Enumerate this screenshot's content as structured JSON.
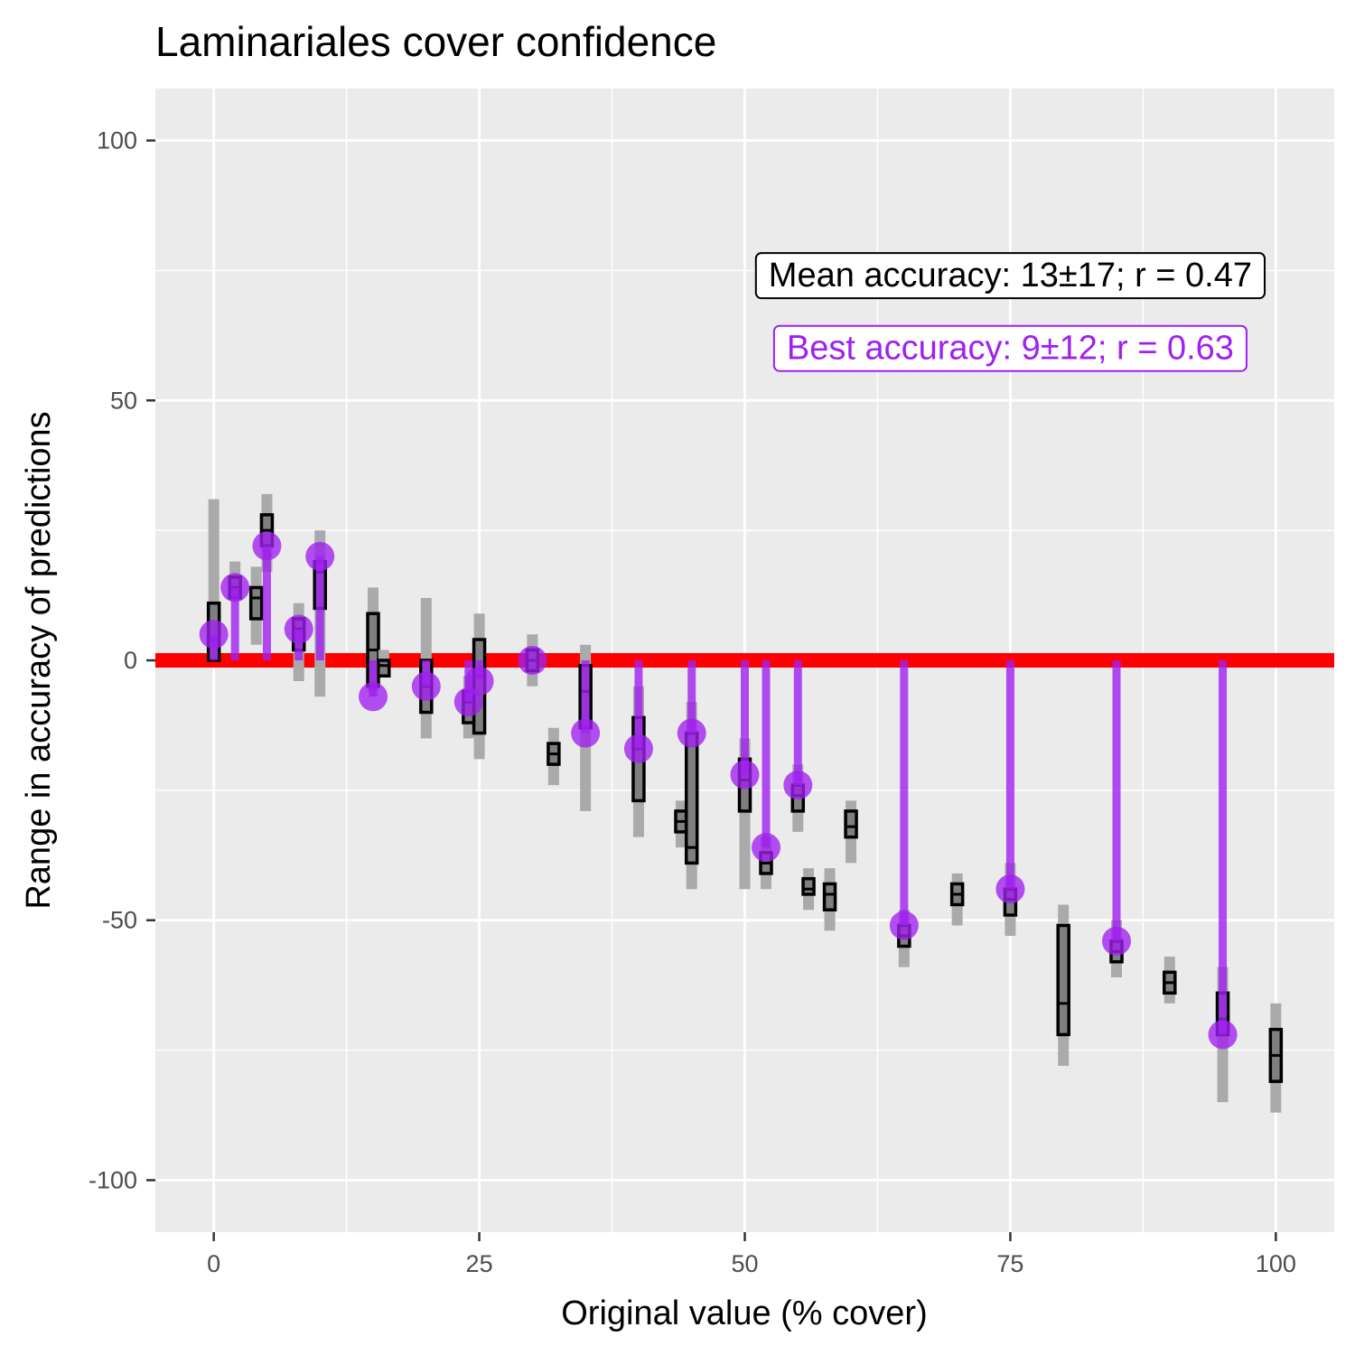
{
  "chart_data": {
    "type": "boxplot-with-points",
    "title": "Laminariales cover confidence",
    "xlabel": "Original value (% cover)",
    "ylabel": "Range in accuracy of predictions",
    "xlim": [
      -5.5,
      105.5
    ],
    "ylim": [
      -110,
      110
    ],
    "x_ticks": [
      0,
      25,
      50,
      75,
      100
    ],
    "y_ticks": [
      100,
      50,
      0,
      -50,
      -100
    ],
    "x_tick_labels": [
      "0",
      "25",
      "50",
      "75",
      "100"
    ],
    "y_tick_labels": [
      "100",
      "50",
      "0",
      "-50",
      "-100"
    ],
    "reference_line": {
      "y": 0,
      "color": "#ff0000"
    },
    "colors": {
      "panel": "#ebebeb",
      "grid": "#ffffff",
      "whisker": "#aaaaaa",
      "box_fill": "#7f7f7f",
      "box_stroke": "#000000",
      "best": "#a020f0",
      "zero_line": "#ff0000"
    },
    "annotations": [
      {
        "text": "Mean accuracy: 13±17; r = 0.47",
        "x": 75,
        "y": 74,
        "color": "#000000"
      },
      {
        "text": "Best accuracy: 9±12; r = 0.63",
        "x": 75,
        "y": 60,
        "color": "#a020f0"
      }
    ],
    "boxes": [
      {
        "x": 0,
        "lo": 0,
        "q1": 0,
        "med": 4,
        "q3": 11,
        "hi": 31
      },
      {
        "x": 2,
        "lo": 12,
        "q1": 12,
        "med": 14,
        "q3": 16,
        "hi": 19
      },
      {
        "x": 4,
        "lo": 3,
        "q1": 8,
        "med": 12,
        "q3": 14,
        "hi": 18
      },
      {
        "x": 5,
        "lo": 17,
        "q1": 22,
        "med": 25,
        "q3": 28,
        "hi": 32
      },
      {
        "x": 8,
        "lo": -4,
        "q1": 2,
        "med": 6,
        "q3": 8,
        "hi": 11
      },
      {
        "x": 10,
        "lo": -7,
        "q1": 10,
        "med": 17,
        "q3": 19,
        "hi": 25
      },
      {
        "x": 15,
        "lo": -6,
        "q1": -5,
        "med": 2,
        "q3": 9,
        "hi": 14
      },
      {
        "x": 16,
        "lo": -3,
        "q1": -3,
        "med": -1,
        "q3": 0,
        "hi": 2
      },
      {
        "x": 20,
        "lo": -15,
        "q1": -10,
        "med": -5,
        "q3": 0,
        "hi": 12
      },
      {
        "x": 24,
        "lo": -15,
        "q1": -12,
        "med": -8,
        "q3": -6,
        "hi": -3
      },
      {
        "x": 25,
        "lo": -19,
        "q1": -14,
        "med": -3,
        "q3": 4,
        "hi": 9
      },
      {
        "x": 30,
        "lo": -5,
        "q1": -2,
        "med": 0,
        "q3": 2,
        "hi": 5
      },
      {
        "x": 32,
        "lo": -24,
        "q1": -20,
        "med": -18,
        "q3": -16,
        "hi": -13
      },
      {
        "x": 35,
        "lo": -29,
        "q1": -13,
        "med": -6,
        "q3": -1,
        "hi": 3
      },
      {
        "x": 40,
        "lo": -34,
        "q1": -27,
        "med": -17,
        "q3": -11,
        "hi": -5
      },
      {
        "x": 44,
        "lo": -36,
        "q1": -33,
        "med": -31,
        "q3": -29,
        "hi": -27
      },
      {
        "x": 45,
        "lo": -44,
        "q1": -39,
        "med": -36,
        "q3": -14,
        "hi": -8
      },
      {
        "x": 50,
        "lo": -44,
        "q1": -29,
        "med": -23,
        "q3": -19,
        "hi": -15
      },
      {
        "x": 52,
        "lo": -44,
        "q1": -41,
        "med": -39,
        "q3": -37,
        "hi": -34
      },
      {
        "x": 55,
        "lo": -33,
        "q1": -29,
        "med": -26,
        "q3": -24,
        "hi": -20
      },
      {
        "x": 56,
        "lo": -48,
        "q1": -45,
        "med": -44,
        "q3": -42,
        "hi": -40
      },
      {
        "x": 58,
        "lo": -52,
        "q1": -48,
        "med": -45,
        "q3": -43,
        "hi": -40
      },
      {
        "x": 60,
        "lo": -39,
        "q1": -34,
        "med": -32,
        "q3": -29,
        "hi": -27
      },
      {
        "x": 65,
        "lo": -59,
        "q1": -55,
        "med": -53,
        "q3": -51,
        "hi": -48
      },
      {
        "x": 70,
        "lo": -51,
        "q1": -47,
        "med": -45,
        "q3": -43,
        "hi": -41
      },
      {
        "x": 75,
        "lo": -53,
        "q1": -49,
        "med": -46,
        "q3": -44,
        "hi": -39
      },
      {
        "x": 80,
        "lo": -78,
        "q1": -72,
        "med": -66,
        "q3": -51,
        "hi": -47
      },
      {
        "x": 85,
        "lo": -61,
        "q1": -58,
        "med": -56,
        "q3": -54,
        "hi": -50
      },
      {
        "x": 90,
        "lo": -66,
        "q1": -64,
        "med": -62,
        "q3": -60,
        "hi": -57
      },
      {
        "x": 95,
        "lo": -85,
        "q1": -72,
        "med": -69,
        "q3": -64,
        "hi": -59
      },
      {
        "x": 100,
        "lo": -87,
        "q1": -81,
        "med": -76,
        "q3": -71,
        "hi": -66
      }
    ],
    "best": [
      {
        "x": 0,
        "y": 5
      },
      {
        "x": 2,
        "y": 14
      },
      {
        "x": 5,
        "y": 22
      },
      {
        "x": 8,
        "y": 6
      },
      {
        "x": 10,
        "y": 20
      },
      {
        "x": 15,
        "y": -7
      },
      {
        "x": 20,
        "y": -5
      },
      {
        "x": 24,
        "y": -8
      },
      {
        "x": 25,
        "y": -4
      },
      {
        "x": 30,
        "y": 0
      },
      {
        "x": 35,
        "y": -14
      },
      {
        "x": 40,
        "y": -17
      },
      {
        "x": 45,
        "y": -14
      },
      {
        "x": 50,
        "y": -22
      },
      {
        "x": 52,
        "y": -36
      },
      {
        "x": 55,
        "y": -24
      },
      {
        "x": 65,
        "y": -51
      },
      {
        "x": 75,
        "y": -44
      },
      {
        "x": 85,
        "y": -54
      },
      {
        "x": 95,
        "y": -72
      }
    ]
  }
}
